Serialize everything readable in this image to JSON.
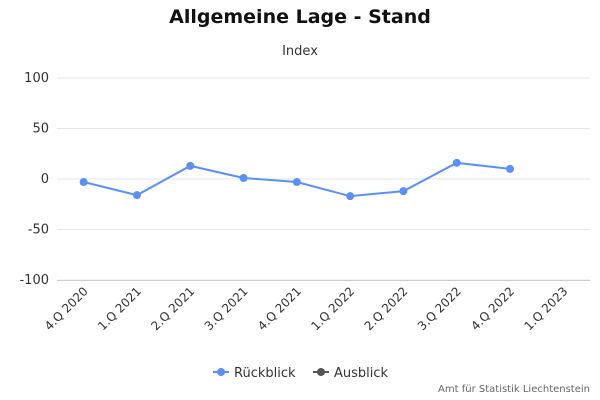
{
  "chart_data": {
    "type": "line",
    "title": "Allgemeine Lage - Stand",
    "subtitle": "Index",
    "categories": [
      "4.Q 2020",
      "1.Q 2021",
      "2.Q 2021",
      "3.Q 2021",
      "4.Q 2021",
      "1.Q 2022",
      "2.Q 2022",
      "3.Q 2022",
      "4.Q 2022",
      "1.Q 2023"
    ],
    "ylim": [
      -100,
      100
    ],
    "yticks": [
      "100",
      "50",
      "0",
      "-50",
      "-100"
    ],
    "ytick_values": [
      100,
      50,
      0,
      -50,
      -100
    ],
    "grid": true,
    "legend_position": "bottom-center",
    "series": [
      {
        "name": "Rückblick",
        "color": "#5b8ff9",
        "values": [
          -3,
          -16,
          13,
          1,
          -3,
          -17,
          -12,
          16,
          10,
          null
        ]
      },
      {
        "name": "Ausblick",
        "color": "#555555",
        "values": [
          null,
          null,
          null,
          null,
          null,
          null,
          null,
          null,
          null,
          null
        ]
      }
    ]
  },
  "credits": "Amt für Statistik Liechtenstein"
}
